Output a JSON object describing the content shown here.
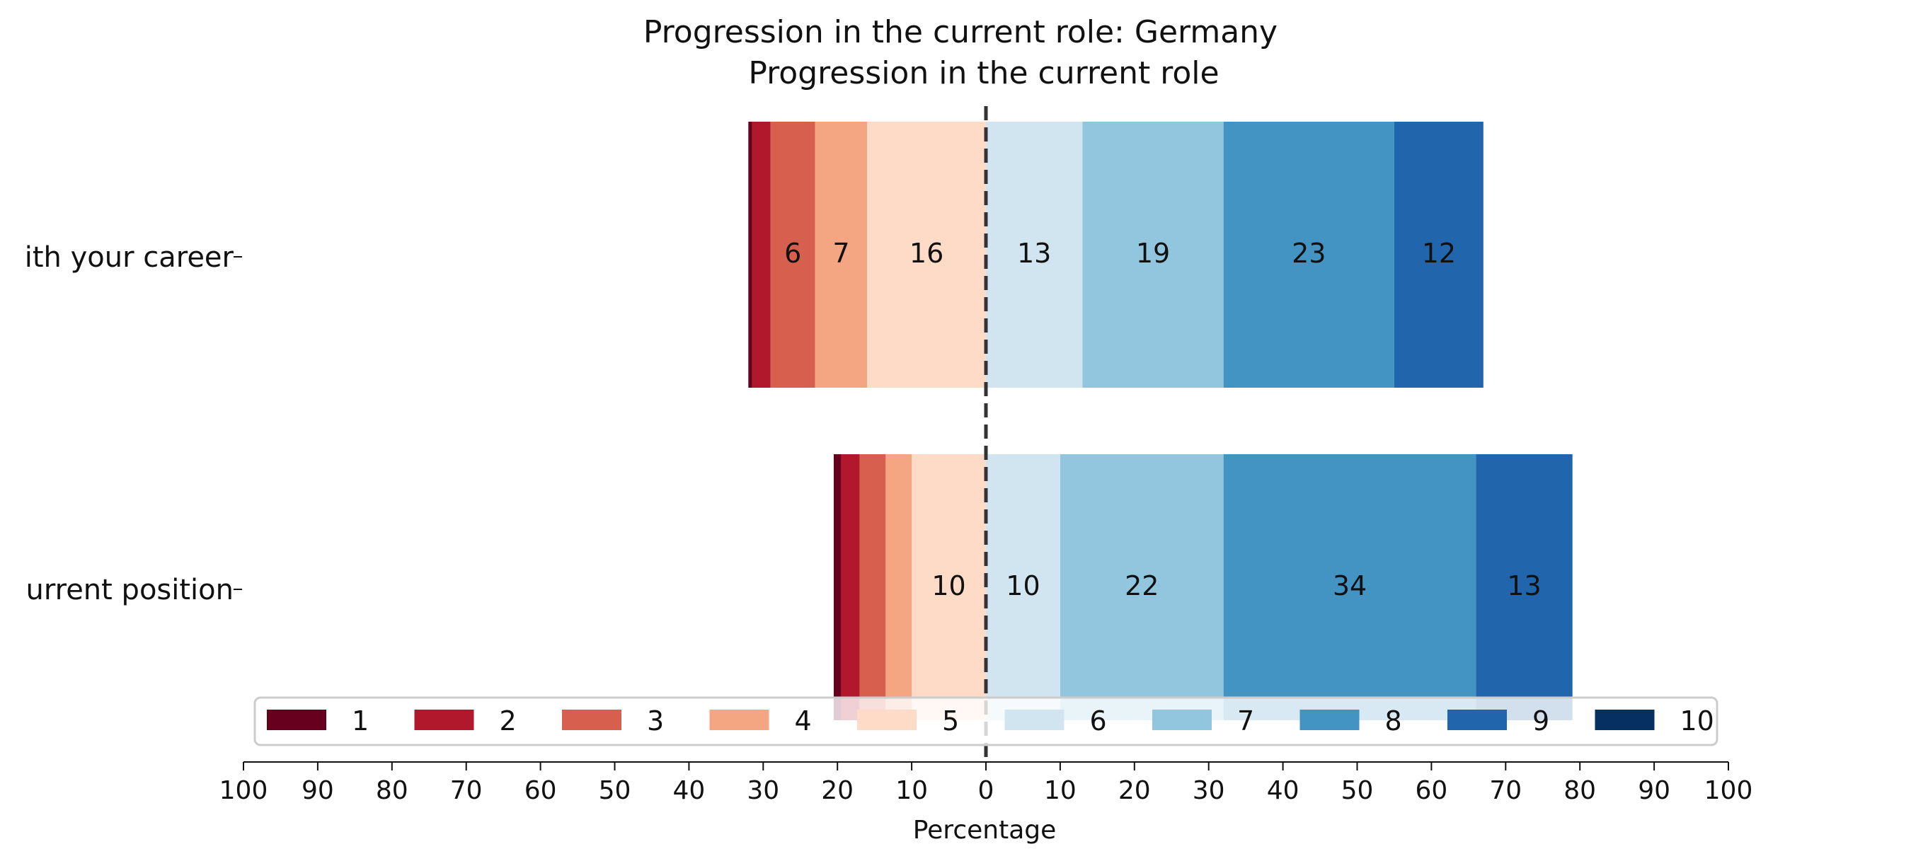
{
  "chart_data": {
    "type": "bar",
    "orientation": "horizontal",
    "stacking": "diverging",
    "title": "Progression in the current role: Germany",
    "subtitle": "Progression in the current role",
    "xlabel": "Percentage",
    "xlim": [
      -100,
      100
    ],
    "xtick_labels": [
      "100",
      "90",
      "80",
      "70",
      "60",
      "50",
      "40",
      "30",
      "20",
      "10",
      "0",
      "10",
      "20",
      "30",
      "40",
      "50",
      "60",
      "70",
      "80",
      "90",
      "100"
    ],
    "grid": false,
    "legend_position": "bottom-center",
    "categories": [
      "ith your career",
      "urrent position"
    ],
    "series": [
      {
        "name": "1",
        "values": [
          0.5,
          1
        ],
        "color": "#67001f"
      },
      {
        "name": "2",
        "values": [
          2.5,
          2.5
        ],
        "color": "#b2182b"
      },
      {
        "name": "3",
        "values": [
          6,
          3.5
        ],
        "color": "#d6604d"
      },
      {
        "name": "4",
        "values": [
          7,
          3.5
        ],
        "color": "#f4a582"
      },
      {
        "name": "5",
        "values": [
          16,
          10
        ],
        "color": "#fddbc7"
      },
      {
        "name": "6",
        "values": [
          13,
          10
        ],
        "color": "#d1e5f0"
      },
      {
        "name": "7",
        "values": [
          19,
          22
        ],
        "color": "#92c5de"
      },
      {
        "name": "8",
        "values": [
          23,
          34
        ],
        "color": "#4393c3"
      },
      {
        "name": "9",
        "values": [
          12,
          13
        ],
        "color": "#2166ac"
      },
      {
        "name": "10",
        "values": [
          0,
          0
        ],
        "color": "#053061"
      }
    ],
    "bar_value_labels": [
      [
        "",
        "",
        "6",
        "7",
        "16",
        "13",
        "19",
        "23",
        "12",
        ""
      ],
      [
        "",
        "",
        "",
        "",
        "10",
        "10",
        "22",
        "34",
        "13",
        ""
      ]
    ],
    "center_line": "0"
  }
}
